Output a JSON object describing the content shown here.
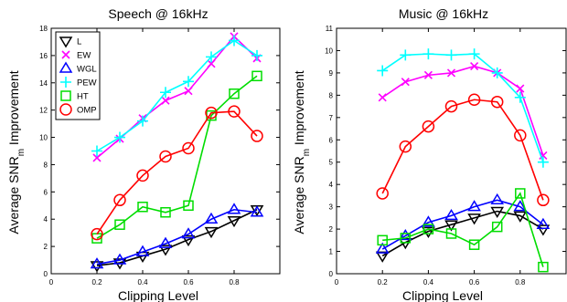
{
  "chart_data": [
    {
      "type": "line",
      "title": "Speech @ 16kHz",
      "xlabel": "Clipping Level",
      "ylabel_prefix": "Average SNR",
      "ylabel_sub": "m",
      "ylabel_suffix": " Improvement",
      "xlim": [
        0,
        1
      ],
      "ylim": [
        0,
        18
      ],
      "xticks": [
        0,
        0.2,
        0.4,
        0.6,
        0.8
      ],
      "xtick_labels": [
        "0",
        "0.2",
        "0.4",
        "0.6",
        "0.8"
      ],
      "yticks": [
        0,
        2,
        4,
        6,
        8,
        10,
        12,
        14,
        16,
        18
      ],
      "ytick_labels": [
        "0",
        "2",
        "4",
        "6",
        "8",
        "10",
        "12",
        "14",
        "16",
        "18"
      ],
      "x": [
        0.2,
        0.3,
        0.4,
        0.5,
        0.6,
        0.7,
        0.8,
        0.9
      ],
      "legend_position": "top-left",
      "series": [
        {
          "name": "L",
          "marker": "triangle-down",
          "color": "#000000",
          "values": [
            0.6,
            0.8,
            1.3,
            1.8,
            2.5,
            3.1,
            3.9,
            4.7
          ]
        },
        {
          "name": "EW",
          "marker": "x",
          "color": "#ff00ff",
          "values": [
            8.5,
            9.9,
            11.4,
            12.7,
            13.4,
            15.4,
            17.4,
            15.8
          ]
        },
        {
          "name": "WGL",
          "marker": "triangle-up",
          "color": "#0000ff",
          "values": [
            0.7,
            1.0,
            1.6,
            2.2,
            2.9,
            4.0,
            4.7,
            4.5
          ]
        },
        {
          "name": "PEW",
          "marker": "plus",
          "color": "#00ffff",
          "values": [
            9.0,
            10.0,
            11.2,
            13.3,
            14.1,
            15.9,
            17.1,
            16.0
          ]
        },
        {
          "name": "HT",
          "marker": "square",
          "color": "#00dd00",
          "values": [
            2.6,
            3.6,
            4.9,
            4.5,
            5.0,
            11.6,
            13.2,
            14.5
          ]
        },
        {
          "name": "OMP",
          "marker": "circle",
          "color": "#ff0000",
          "values": [
            2.9,
            5.4,
            7.2,
            8.6,
            9.2,
            11.8,
            11.9,
            10.1
          ]
        }
      ]
    },
    {
      "type": "line",
      "title": "Music @ 16kHz",
      "xlabel": "Clipping Level",
      "ylabel_prefix": "Average SNR",
      "ylabel_sub": "m",
      "ylabel_suffix": " Improvement",
      "xlim": [
        0,
        1
      ],
      "ylim": [
        0,
        11
      ],
      "xticks": [
        0,
        0.2,
        0.4,
        0.6,
        0.8
      ],
      "xtick_labels": [
        "0",
        "0.2",
        "0.4",
        "0.6",
        "0.8"
      ],
      "yticks": [
        0,
        1,
        2,
        3,
        4,
        5,
        6,
        7,
        8,
        9,
        10,
        11
      ],
      "ytick_labels": [
        "0",
        "1",
        "2",
        "3",
        "4",
        "5",
        "6",
        "7",
        "8",
        "9",
        "10",
        "11"
      ],
      "x": [
        0.2,
        0.3,
        0.4,
        0.5,
        0.6,
        0.7,
        0.8,
        0.9
      ],
      "series": [
        {
          "name": "L",
          "marker": "triangle-down",
          "color": "#000000",
          "values": [
            0.8,
            1.4,
            1.9,
            2.2,
            2.5,
            2.8,
            2.6,
            2.0
          ]
        },
        {
          "name": "EW",
          "marker": "x",
          "color": "#ff00ff",
          "values": [
            7.9,
            8.6,
            8.9,
            9.0,
            9.3,
            9.0,
            8.3,
            5.3
          ]
        },
        {
          "name": "WGL",
          "marker": "triangle-up",
          "color": "#0000ff",
          "values": [
            1.1,
            1.7,
            2.3,
            2.6,
            3.0,
            3.3,
            3.0,
            2.2
          ]
        },
        {
          "name": "PEW",
          "marker": "plus",
          "color": "#00ffff",
          "values": [
            9.1,
            9.8,
            9.85,
            9.8,
            9.85,
            9.0,
            7.9,
            5.0
          ]
        },
        {
          "name": "HT",
          "marker": "square",
          "color": "#00dd00",
          "values": [
            1.5,
            1.6,
            2.0,
            1.8,
            1.3,
            2.1,
            3.6,
            0.3
          ]
        },
        {
          "name": "OMP",
          "marker": "circle",
          "color": "#ff0000",
          "values": [
            3.6,
            5.7,
            6.6,
            7.5,
            7.8,
            7.7,
            6.2,
            3.3
          ]
        }
      ]
    }
  ]
}
